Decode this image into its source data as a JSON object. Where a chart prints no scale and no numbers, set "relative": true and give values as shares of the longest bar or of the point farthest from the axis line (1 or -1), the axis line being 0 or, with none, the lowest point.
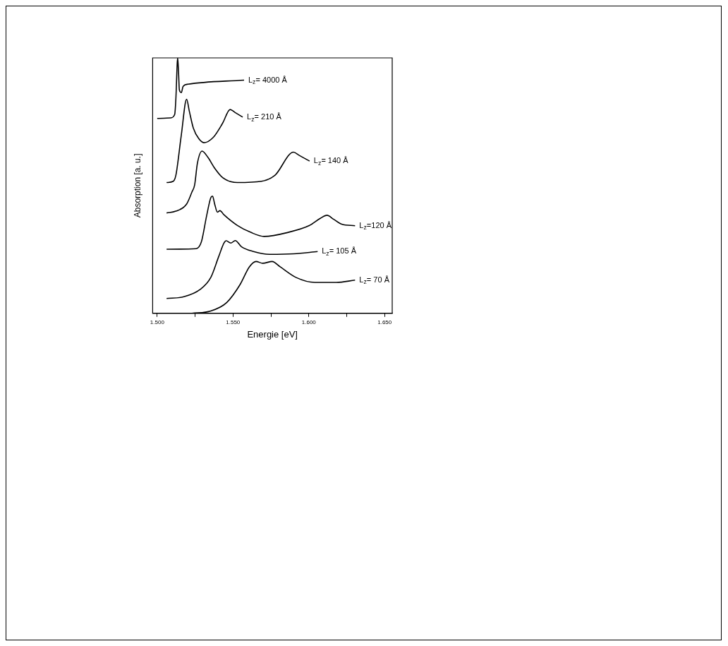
{
  "chart_data": {
    "type": "line",
    "xlabel": "Energie [eV]",
    "ylabel": "Absorption [a. u.]",
    "relative": true,
    "legend": false,
    "marker": "none",
    "grid": false,
    "xlim": [
      1.497,
      1.655
    ],
    "xticks": [
      {
        "value": 1.5,
        "label": "1.500"
      },
      {
        "value": 1.525,
        "label": null
      },
      {
        "value": 1.55,
        "label": "1.550"
      },
      {
        "value": 1.575,
        "label": null
      },
      {
        "value": 1.6,
        "label": "1.600"
      },
      {
        "value": 1.625,
        "label": null
      },
      {
        "value": 1.65,
        "label": "1.650"
      }
    ],
    "series": [
      {
        "name": "L$_{z}$= 4000 Å",
        "color": "#000000",
        "x": [
          1.5,
          1.5088,
          1.5115,
          1.5123,
          1.5132,
          1.5135,
          1.5141,
          1.5146,
          1.5159,
          1.5171,
          1.5203,
          1.5573
        ],
        "values": [
          0.763,
          0.765,
          0.778,
          0.838,
          0.978,
          1.0,
          0.941,
          0.875,
          0.864,
          0.889,
          0.897,
          0.913
        ]
      },
      {
        "name": "L$_{z}$= 210 Å",
        "color": "#000000",
        "x": [
          1.5062,
          1.5106,
          1.5123,
          1.5159,
          1.5194,
          1.5212,
          1.5238,
          1.5274,
          1.5308,
          1.537,
          1.5432,
          1.5481,
          1.5512,
          1.5564
        ],
        "values": [
          0.512,
          0.517,
          0.54,
          0.698,
          0.838,
          0.791,
          0.726,
          0.684,
          0.668,
          0.689,
          0.745,
          0.798,
          0.787,
          0.768
        ]
      },
      {
        "name": "L$_{z}$= 140 Å",
        "color": "#000000",
        "x": [
          1.5062,
          1.5123,
          1.5194,
          1.5229,
          1.5247,
          1.5265,
          1.5296,
          1.5335,
          1.5379,
          1.5432,
          1.5529,
          1.5688,
          1.5776,
          1.5899,
          1.5935,
          1.6005
        ],
        "values": [
          0.393,
          0.4,
          0.428,
          0.475,
          0.503,
          0.587,
          0.635,
          0.61,
          0.568,
          0.531,
          0.512,
          0.517,
          0.54,
          0.631,
          0.619,
          0.596
        ]
      },
      {
        "name": "L$_{z}$=120 Å",
        "color": "#000000",
        "x": [
          1.5062,
          1.5256,
          1.5291,
          1.5326,
          1.5353,
          1.5365,
          1.5379,
          1.5397,
          1.5414,
          1.544,
          1.5529,
          1.5617,
          1.5705,
          1.5864,
          1.6005,
          1.6076,
          1.612,
          1.6164,
          1.6217,
          1.6305
        ],
        "values": [
          0.251,
          0.253,
          0.279,
          0.382,
          0.452,
          0.459,
          0.428,
          0.396,
          0.402,
          0.386,
          0.344,
          0.317,
          0.301,
          0.317,
          0.344,
          0.372,
          0.384,
          0.368,
          0.349,
          0.343
        ]
      },
      {
        "name": "L$_{z}$= 105 Å",
        "color": "#000000",
        "x": [
          1.5062,
          1.5176,
          1.5282,
          1.5353,
          1.5406,
          1.544,
          1.5455,
          1.5485,
          1.5515,
          1.5555,
          1.5635,
          1.5741,
          1.5899,
          1.6058
        ],
        "values": [
          0.058,
          0.065,
          0.093,
          0.14,
          0.223,
          0.275,
          0.284,
          0.275,
          0.285,
          0.261,
          0.242,
          0.231,
          0.233,
          0.242
        ]
      },
      {
        "name": "L$_{z}$= 70 Å",
        "color": "#000000",
        "x": [
          1.5229,
          1.5353,
          1.5458,
          1.5546,
          1.5608,
          1.5652,
          1.5696,
          1.5758,
          1.5811,
          1.5917,
          1.604,
          1.6181,
          1.6305
        ],
        "values": [
          0.0,
          0.009,
          0.042,
          0.112,
          0.182,
          0.203,
          0.196,
          0.203,
          0.182,
          0.14,
          0.121,
          0.121,
          0.13
        ]
      }
    ]
  }
}
